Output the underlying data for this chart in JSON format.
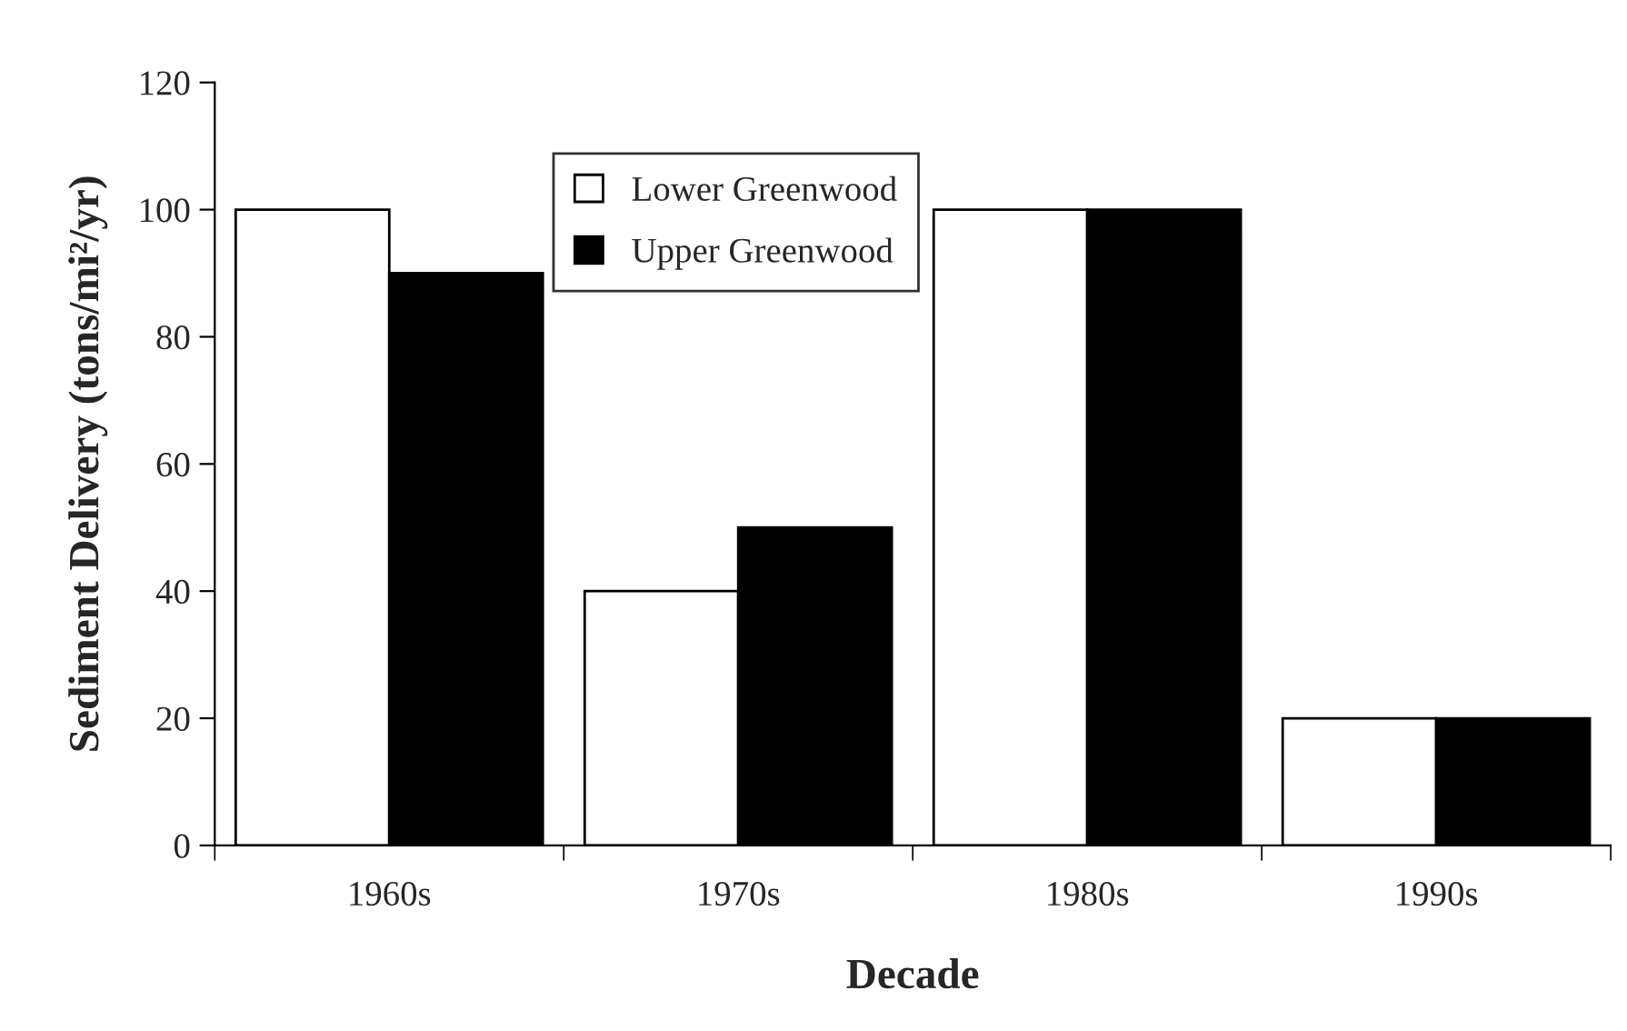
{
  "chart_data": {
    "type": "bar",
    "xlabel": "Decade",
    "ylabel": "Sediment Delivery (tons/mi²/yr)",
    "categories": [
      "1960s",
      "1970s",
      "1980s",
      "1990s"
    ],
    "series": [
      {
        "name": "Lower Greenwood",
        "color": "#ffffff",
        "values": [
          100,
          40,
          100,
          20
        ]
      },
      {
        "name": "Upper Greenwood",
        "color": "#000000",
        "values": [
          90,
          50,
          100,
          20
        ]
      }
    ],
    "ylim": [
      0,
      120
    ],
    "yticks": [
      0,
      20,
      40,
      60,
      80,
      100,
      120
    ],
    "grid": false,
    "legend": "top"
  }
}
